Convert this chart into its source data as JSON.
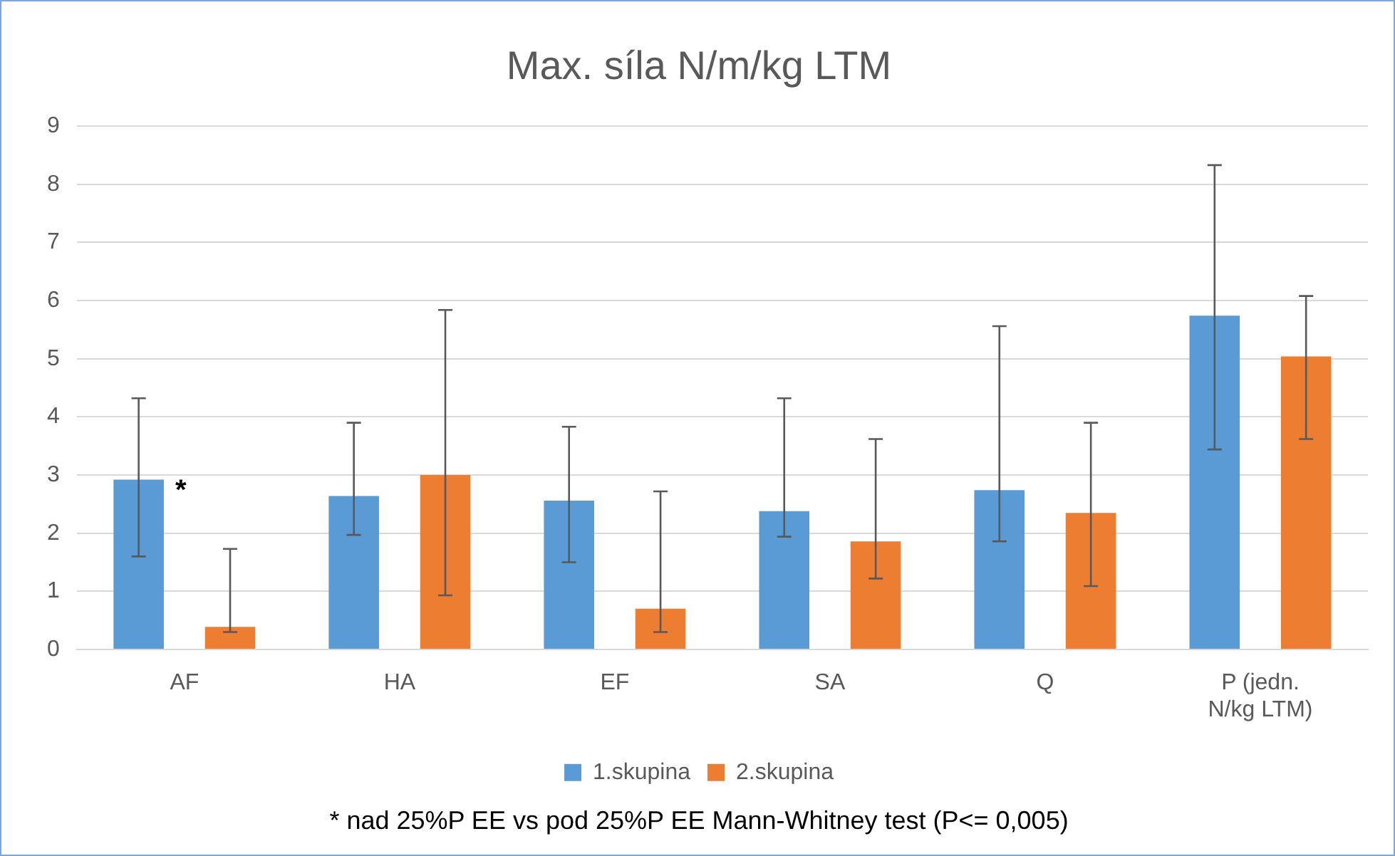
{
  "chart_data": {
    "type": "bar",
    "title": "Max. síla N/m/kg LTM",
    "categories": [
      "AF",
      "HA",
      "EF",
      "SA",
      "Q",
      "P (jedn. N/kg LTM)"
    ],
    "series": [
      {
        "name": "1.skupina",
        "color": "#5b9bd5",
        "values": [
          2.92,
          2.64,
          2.56,
          2.38,
          2.74,
          5.74
        ],
        "errors": [
          [
            1.6,
            4.32
          ],
          [
            1.97,
            3.9
          ],
          [
            1.5,
            3.83
          ],
          [
            1.94,
            4.32
          ],
          [
            1.86,
            5.56
          ],
          [
            3.44,
            8.33
          ]
        ]
      },
      {
        "name": "2.skupina",
        "color": "#ed7d31",
        "values": [
          0.39,
          3.0,
          0.7,
          1.86,
          2.35,
          5.04
        ],
        "errors": [
          [
            0.3,
            1.73
          ],
          [
            0.93,
            5.84
          ],
          [
            0.3,
            2.72
          ],
          [
            1.22,
            3.62
          ],
          [
            1.09,
            3.9
          ],
          [
            3.62,
            6.08
          ]
        ]
      }
    ],
    "ylim": [
      0,
      9
    ],
    "yticks": [
      0,
      1,
      2,
      3,
      4,
      5,
      6,
      7,
      8,
      9
    ],
    "grid": "y",
    "legend": "bottom",
    "annotations": [
      "*",
      "* nad 25%P EE vs pod 25%P EE Mann-Whitney test (P<= 0,005)"
    ]
  }
}
